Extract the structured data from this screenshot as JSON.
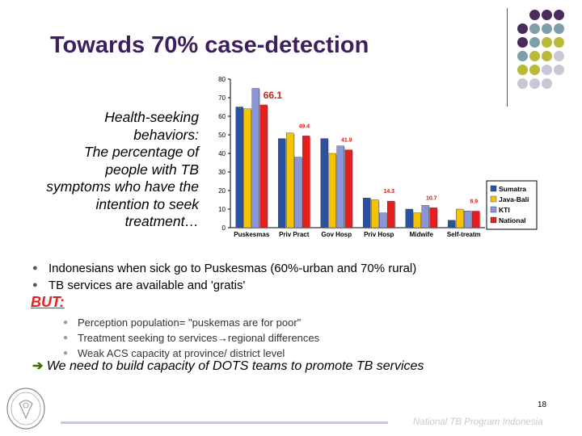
{
  "slide": {
    "title": "Towards 70% case-detection",
    "caption_lines": [
      "Health-seeking",
      "behaviors:",
      "The percentage of",
      "people with TB",
      "symptoms who have the",
      "intention to seek",
      "treatment…"
    ],
    "bullets": [
      "Indonesians when sick go to Puskesmas (60%-urban and 70% rural)",
      "TB services are available and 'gratis'"
    ],
    "but_label": "BUT:",
    "sub_bullets": [
      "Perception population= \"puskemas are for poor\"",
      "Treatment seeking to services→regional differences",
      "Weak ACS capacity at province/ district level"
    ],
    "conclusion_arrow": "➔",
    "conclusion": "We need to build capacity of DOTS teams to promote TB services",
    "page_number": "18",
    "footer": "National TB Program Indonesia",
    "colors": {
      "title": "#3d1f5c",
      "but": "#e6201f"
    }
  },
  "chart_data": {
    "type": "bar",
    "categories": [
      "Puskesmas",
      "Priv Pract",
      "Gov Hosp",
      "Priv Hosp",
      "Midwife",
      "Self-treatm"
    ],
    "series": [
      {
        "name": "Sumatra",
        "color": "#2952a3",
        "values": [
          65,
          48,
          48,
          16,
          10,
          4
        ]
      },
      {
        "name": "Java-Bali",
        "color": "#f5c400",
        "values": [
          64,
          51,
          40,
          15,
          8,
          10
        ]
      },
      {
        "name": "KTI",
        "color": "#8b96d8",
        "values": [
          75,
          38,
          44,
          8,
          12,
          9
        ]
      },
      {
        "name": "National",
        "color": "#e61e1e",
        "values": [
          66.1,
          49.4,
          41.9,
          14.3,
          10.7,
          8.9
        ]
      }
    ],
    "data_labels": [
      {
        "category": "Puskesmas",
        "series": "National",
        "text": "66.1"
      },
      {
        "category": "Priv Pract",
        "series": "National",
        "text": "49.4"
      },
      {
        "category": "Gov Hosp",
        "series": "National",
        "text": "41.9"
      },
      {
        "category": "Priv Hosp",
        "series": "National",
        "text": "14.3"
      },
      {
        "category": "Midwife",
        "series": "National",
        "text": "10.7"
      },
      {
        "category": "Self-treatm",
        "series": "National",
        "text": "8.9"
      }
    ],
    "ylim": [
      0,
      80
    ],
    "yticks": [
      0,
      10,
      20,
      30,
      40,
      50,
      60,
      70,
      80
    ],
    "grid": false,
    "legend_position": "right",
    "title": "",
    "xlabel": "",
    "ylabel": ""
  }
}
